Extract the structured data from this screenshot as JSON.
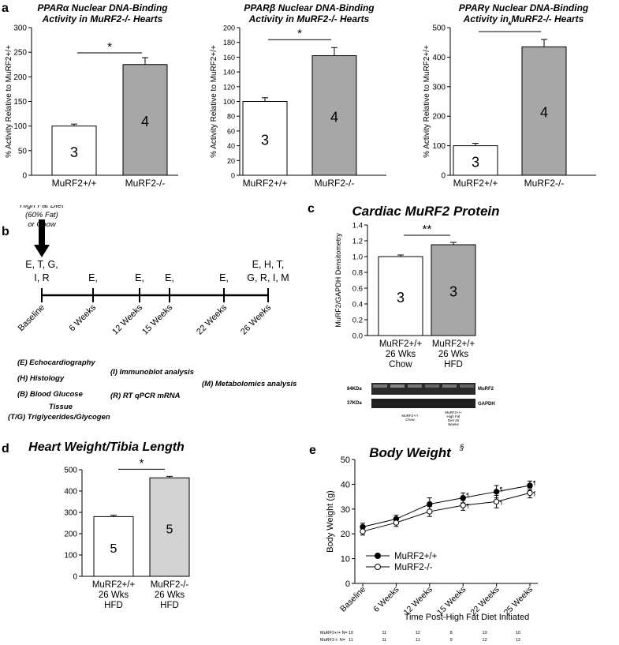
{
  "panels": {
    "a_label": "a",
    "b_label": "b",
    "c_label": "c",
    "d_label": "d",
    "e_label": "e"
  },
  "chart_data": [
    {
      "id": "a1",
      "type": "bar",
      "title_line1": "PPARα Nuclear DNA-Binding",
      "title_line2": "Activity in MuRF2-/- Hearts",
      "ylabel": "% Activity Relative to MuRF2+/+",
      "ylim": [
        0,
        300
      ],
      "yticks": [
        0,
        50,
        100,
        150,
        200,
        250,
        300
      ],
      "categories": [
        "MuRF2+/+",
        "MuRF2-/-"
      ],
      "values": [
        100,
        225
      ],
      "errors": [
        4,
        14
      ],
      "n_labels": [
        "3",
        "4"
      ],
      "colors": [
        "#ffffff",
        "#a7a7a7"
      ],
      "significance": "*"
    },
    {
      "id": "a2",
      "type": "bar",
      "title_line1": "PPARβ Nuclear DNA-Binding",
      "title_line2": "Activity in MuRF2-/- Hearts",
      "ylabel": "% Activity Relative to MuRF2+/+",
      "ylim": [
        0,
        200
      ],
      "yticks": [
        0,
        20,
        40,
        60,
        80,
        100,
        120,
        140,
        160,
        180,
        200
      ],
      "categories": [
        "MuRF2+/+",
        "MuRF2-/-"
      ],
      "values": [
        100,
        162
      ],
      "errors": [
        5,
        11
      ],
      "n_labels": [
        "3",
        "4"
      ],
      "colors": [
        "#ffffff",
        "#a7a7a7"
      ],
      "significance": "*"
    },
    {
      "id": "a3",
      "type": "bar",
      "title_line1": "PPARγ Nuclear DNA-Binding",
      "title_line2": "Activity in MuRF2-/- Hearts",
      "ylabel": "% Activity Relative to MuRF2+/+",
      "ylim": [
        0,
        500
      ],
      "yticks": [
        0,
        100,
        200,
        300,
        400,
        500
      ],
      "categories": [
        "MuRF2+/+",
        "MuRF2-/-"
      ],
      "values": [
        100,
        435
      ],
      "errors": [
        8,
        25
      ],
      "n_labels": [
        "3",
        "4"
      ],
      "colors": [
        "#ffffff",
        "#a7a7a7"
      ],
      "significance": "*"
    },
    {
      "id": "c",
      "type": "bar",
      "title": "Cardiac MuRF2 Protein",
      "ylabel": "MuRF2/GAPDH Densitometry",
      "ylim": [
        0,
        1.4
      ],
      "yticks": [
        "0.0",
        "0.2",
        "0.4",
        "0.6",
        "0.8",
        "1.0",
        "1.2",
        "1.4"
      ],
      "categories": [
        [
          "MuRF2+/+",
          "26 Wks",
          "Chow"
        ],
        [
          "MuRF2+/+",
          "26 Wks",
          "HFD"
        ]
      ],
      "values": [
        1.0,
        1.15
      ],
      "errors": [
        0.02,
        0.03
      ],
      "n_labels": [
        "3",
        "3"
      ],
      "colors": [
        "#ffffff",
        "#a7a7a7"
      ],
      "significance": "**"
    },
    {
      "id": "d",
      "type": "bar",
      "title": "Heart Weight/Tibia Length",
      "ylabel": "",
      "ylim": [
        0,
        500
      ],
      "yticks": [
        0,
        100,
        200,
        300,
        400,
        500
      ],
      "categories": [
        [
          "MuRF2+/+",
          "26 Wks",
          "HFD"
        ],
        [
          "MuRF2-/-",
          "26 Wks",
          "HFD"
        ]
      ],
      "values": [
        280,
        462
      ],
      "errors": [
        7,
        7
      ],
      "n_labels": [
        "5",
        "5"
      ],
      "colors": [
        "#ffffff",
        "#d2d2d2"
      ],
      "significance": "*"
    },
    {
      "id": "e",
      "type": "line",
      "title": "Body Weight",
      "title_sup": "§",
      "ylabel": "Body Weight (g)",
      "xlabel": "Time Post-High Fat Diet Initiated",
      "ylim": [
        0,
        50
      ],
      "yticks": [
        0,
        10,
        20,
        30,
        40,
        50
      ],
      "categories": [
        "Baseline",
        "6 Weeks",
        "12 Weeks",
        "15 Weeks",
        "22 Weeks",
        "25 Weeks"
      ],
      "series": [
        {
          "name": "MuRF2+/+",
          "values": [
            22.8,
            26.0,
            32.0,
            34.5,
            37.0,
            39.5
          ],
          "errors": [
            1.5,
            1.5,
            2.5,
            2.0,
            2.5,
            1.8
          ],
          "marker": "filled",
          "marks": [
            "",
            "",
            "",
            "¶",
            "¶",
            "¶"
          ]
        },
        {
          "name": "MuRF2-/-",
          "values": [
            21.0,
            24.5,
            29.0,
            31.5,
            33.0,
            36.5
          ],
          "errors": [
            1.5,
            1.5,
            2.0,
            2.0,
            2.5,
            2.0
          ],
          "marker": "open",
          "marks": [
            "",
            "",
            "",
            "¶",
            "¶",
            "¶"
          ]
        }
      ],
      "n_table": [
        {
          "label": "MuRF2+/+  N=",
          "values": [
            "10",
            "11",
            "12",
            "8",
            "10",
            "10"
          ]
        },
        {
          "label": "MuRF2-/-   N=",
          "values": [
            "11",
            "11",
            "11",
            "9",
            "12",
            "12"
          ]
        }
      ]
    }
  ],
  "timeline": {
    "diet_text": [
      "High Fat Diet",
      "(60% Fat)",
      "or Chow"
    ],
    "timepoints": [
      {
        "label": "Baseline",
        "measures": [
          "E, T, G,",
          "I, R"
        ]
      },
      {
        "label": "6 Weeks",
        "measures": [
          "E,"
        ]
      },
      {
        "label": "12 Weeks",
        "measures": [
          "E,"
        ]
      },
      {
        "label": "15 Weeks",
        "measures": [
          "E,"
        ]
      },
      {
        "label": "22 Weeks",
        "measures": [
          "E,"
        ]
      },
      {
        "label": "26 Weeks",
        "measures": [
          "E, H, T,",
          "G, R, I, M"
        ]
      }
    ]
  },
  "legend": {
    "echo": "(E) Echocardiography",
    "histology": "(H) Histology",
    "glucose": "(B) Blood Glucose",
    "tissue": "Tissue",
    "tg": "(T/G) Triglycerides/Glycogen",
    "immunoblot": "(I) Immunoblot analysis",
    "rtpcr": "(R) RT qPCR mRNA",
    "metabolomics": "(M) Metabolomics analysis"
  },
  "blot": {
    "kda_top": "84KDa",
    "kda_bottom": "37KDa",
    "band_top": "MuRF2",
    "band_bottom": "GAPDH",
    "group1": [
      "MuRF2+/+",
      "Chow"
    ],
    "group2": [
      "MuRF2+/+",
      "High Fat",
      "Diet 26",
      "Weeks"
    ]
  }
}
